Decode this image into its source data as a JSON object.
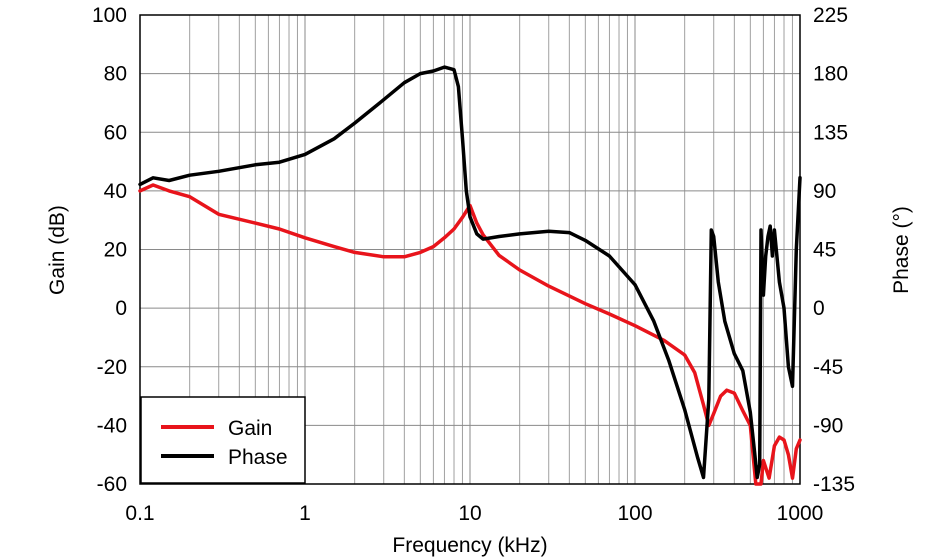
{
  "chart_data": {
    "type": "line",
    "x_scale": "log",
    "xlabel": "Frequency (kHz)",
    "ylabel_left": "Gain (dB)",
    "ylabel_right": "Phase (°)",
    "xlim": [
      0.1,
      1000
    ],
    "ylim_left": [
      -60,
      100
    ],
    "ylim_right": [
      -135,
      225
    ],
    "grid": true,
    "legend_position": "bottom-left",
    "x_tick_labels": [
      "0.1",
      "1",
      "10",
      "100",
      "1000"
    ],
    "y_left_tick_labels": [
      "100",
      "80",
      "60",
      "40",
      "20",
      "0",
      "-20",
      "-40",
      "-60"
    ],
    "y_right_tick_labels": [
      "225",
      "180",
      "135",
      "90",
      "45",
      "0",
      "-45",
      "-90",
      "-135"
    ],
    "series": [
      {
        "name": "Gain",
        "axis": "left",
        "color": "#e8141b",
        "x": [
          0.1,
          0.12,
          0.15,
          0.2,
          0.3,
          0.5,
          0.7,
          1.0,
          1.5,
          2.0,
          3.0,
          4.0,
          5.0,
          6.0,
          7.0,
          8.0,
          9.0,
          10.0,
          11.0,
          12.0,
          15.0,
          20.0,
          30.0,
          50.0,
          70.0,
          100.0,
          150.0,
          200.0,
          230.0,
          260.0,
          280.0,
          300.0,
          330.0,
          360.0,
          400.0,
          450.0,
          500.0,
          540.0,
          580.0,
          600.0,
          650.0,
          700.0,
          750.0,
          800.0,
          850.0,
          900.0,
          950.0,
          1000.0
        ],
        "values": [
          40,
          42,
          40,
          38,
          32,
          29,
          27,
          24,
          21,
          19,
          17.5,
          17.5,
          19,
          21,
          24,
          27,
          31,
          35,
          29,
          25,
          18,
          13,
          7.5,
          1.5,
          -2,
          -6,
          -11,
          -16,
          -22,
          -33,
          -40,
          -36,
          -30,
          -28,
          -29,
          -35,
          -40,
          -60,
          -60,
          -52,
          -58,
          -47,
          -44,
          -45,
          -50,
          -58,
          -48,
          -45
        ]
      },
      {
        "name": "Phase",
        "axis": "right",
        "color": "#000000",
        "x": [
          0.1,
          0.12,
          0.15,
          0.2,
          0.3,
          0.5,
          0.7,
          1.0,
          1.5,
          2.0,
          3.0,
          4.0,
          5.0,
          6.0,
          7.0,
          8.0,
          8.5,
          9.0,
          9.5,
          10.0,
          11.0,
          12.0,
          15.0,
          20.0,
          30.0,
          40.0,
          50.0,
          70.0,
          100.0,
          130.0,
          160.0,
          200.0,
          240.0,
          260.0,
          280.0,
          290.0,
          300.0,
          320.0,
          350.0,
          400.0,
          450.0,
          500.0,
          530.0,
          550.0,
          570.0,
          580.0,
          600.0,
          620.0,
          640.0,
          660.0,
          680.0,
          700.0,
          750.0,
          800.0,
          850.0,
          900.0,
          950.0,
          1000.0
        ],
        "values": [
          95,
          100,
          98,
          102,
          105,
          110,
          112,
          118,
          130,
          142,
          160,
          173,
          180,
          182,
          185,
          183,
          170,
          130,
          90,
          70,
          57,
          53,
          55,
          57,
          59,
          58,
          52,
          40,
          18,
          -10,
          -40,
          -78,
          -115,
          -130,
          -70,
          60,
          55,
          20,
          -10,
          -35,
          -48,
          -80,
          -110,
          -130,
          -120,
          60,
          10,
          40,
          55,
          63,
          40,
          60,
          20,
          0,
          -45,
          -60,
          45,
          100
        ]
      }
    ]
  }
}
